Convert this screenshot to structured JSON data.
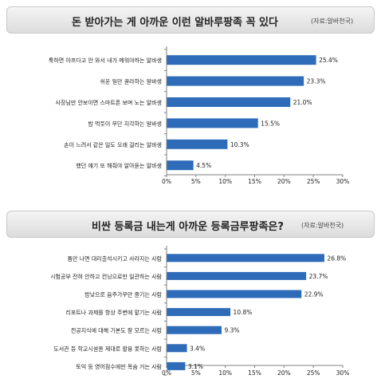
{
  "colors": {
    "bar": "#2e6bb8",
    "axis": "#808080",
    "text": "#222222"
  },
  "chart_data": [
    {
      "type": "bar",
      "orientation": "horizontal",
      "title": "돈 받아가는 게 아까운 이런 알바루팡족 꼭 있다",
      "source": "(자료:알바천국)",
      "categories": [
        "툭하면 아프다고 안 와서 내가 메워야하는 알바생",
        "쉬운 일만 골라하는 알바생",
        "사장님만 안보이면 스마트폰 보며 노는 알바생",
        "밥 먹듯이 무단 지각하는 알바생",
        "손이 느려서 같은 일도 오래 걸리는 알바생",
        "했던 얘기 또 해줘야 알아듣는 알바생"
      ],
      "values": [
        25.4,
        23.3,
        21.0,
        15.5,
        10.3,
        4.5
      ],
      "value_labels": [
        "25.4%",
        "23.3%",
        "21.0%",
        "15.5%",
        "10.3%",
        "4.5%"
      ],
      "ticks": [
        "0%",
        "5%",
        "10%",
        "15%",
        "20%",
        "25%",
        "30%"
      ],
      "xlim": [
        0,
        30
      ],
      "grid": false
    },
    {
      "type": "bar",
      "orientation": "horizontal",
      "title": "비싼 등록금 내는게 아까운 등록금루팡족은?",
      "source": "(자료:알바천국)",
      "categories": [
        "틈만 나면 대리출석시키고 사라지는 사람",
        "시험공부 전혀 안하고 컨닝으로만 일관하는 사람",
        "밤낮으로 음주가무만 즐기는 사람",
        "리포트나 과제를 항상 주변에 맡기는 사람",
        "전공지식에 대해 기본도 잘 모르는 사람",
        "도서관 등 학교시설을 제대로 활용 못하는 사람",
        "토익 등 영어점수에만 목숨 거는 사람"
      ],
      "values": [
        26.8,
        23.7,
        22.9,
        10.8,
        9.3,
        3.4,
        3.1
      ],
      "value_labels": [
        "26.8%",
        "23.7%",
        "22.9%",
        "10.8%",
        "9.3%",
        "3.4%",
        "3.1%"
      ],
      "ticks": [
        "0%",
        "5%",
        "10%",
        "15%",
        "20%",
        "25%",
        "30%"
      ],
      "xlim": [
        0,
        30
      ],
      "grid": false
    }
  ]
}
